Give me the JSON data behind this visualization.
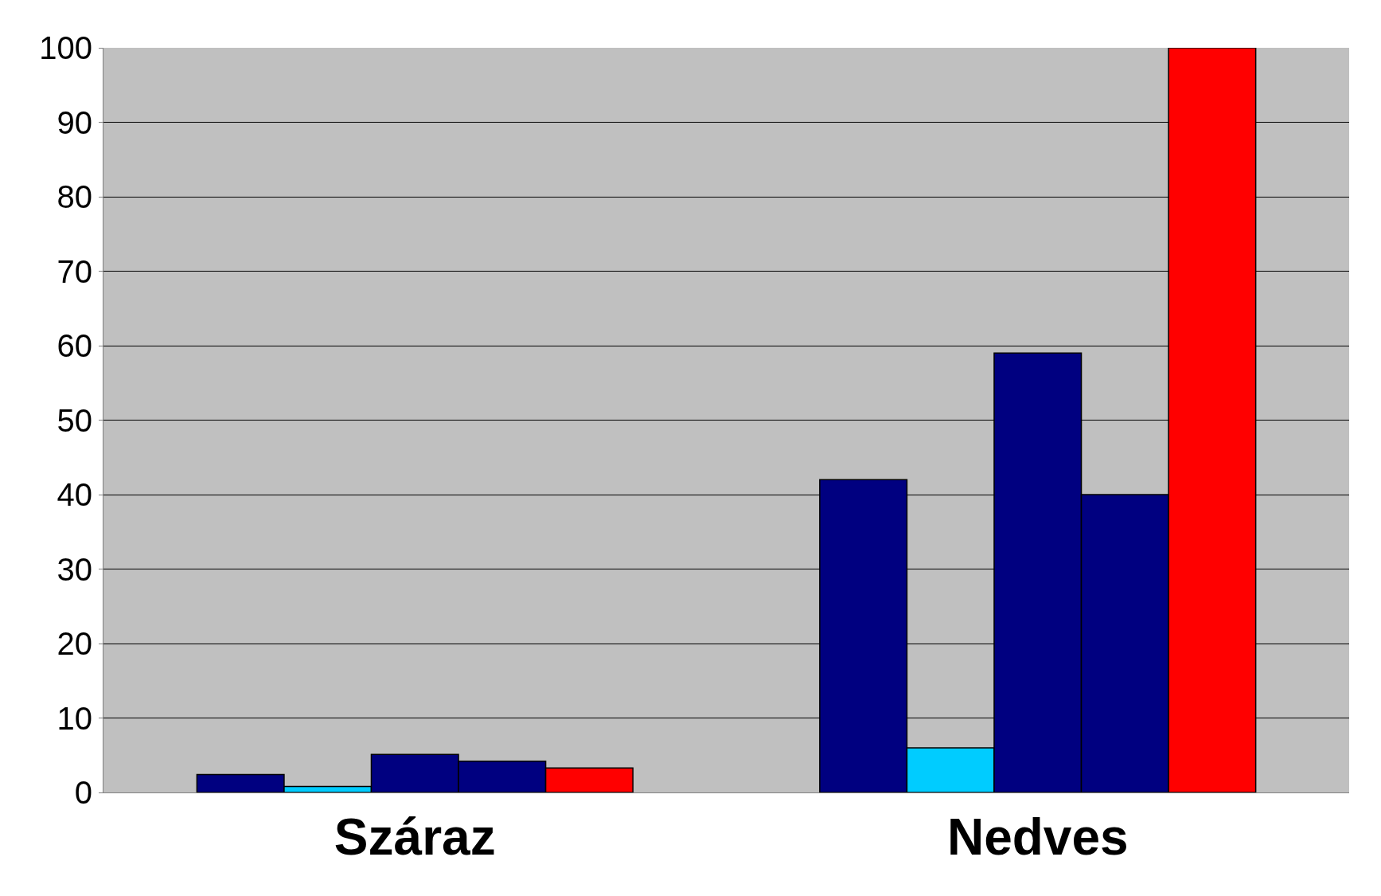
{
  "chart_data": {
    "type": "bar",
    "categories": [
      "Száraz",
      "Nedves"
    ],
    "series": [
      {
        "color": "#000080",
        "values": [
          2.4,
          42
        ]
      },
      {
        "color": "#00ccff",
        "values": [
          0.8,
          6
        ]
      },
      {
        "color": "#000080",
        "values": [
          5.1,
          59
        ]
      },
      {
        "color": "#000080",
        "values": [
          4.2,
          40
        ]
      },
      {
        "color": "#ff0000",
        "values": [
          3.3,
          100
        ]
      }
    ],
    "ylim": [
      0,
      100
    ],
    "yticks": [
      0,
      10,
      20,
      30,
      40,
      50,
      60,
      70,
      80,
      90,
      100
    ],
    "grid": "y"
  }
}
